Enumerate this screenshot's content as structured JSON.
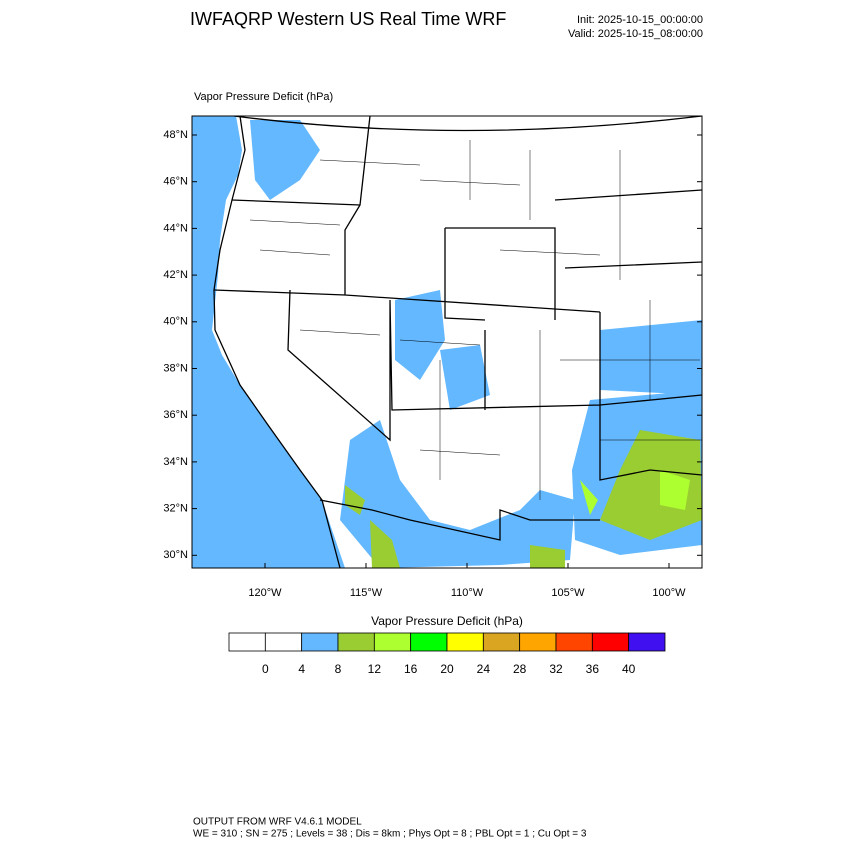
{
  "header": {
    "title": "IWFAQRP Western US Real Time WRF",
    "init": "Init: 2025-10-15_00:00:00",
    "valid": "Valid: 2025-10-15_08:00:00"
  },
  "map": {
    "label": "Vapor Pressure Deficit   (hPa)",
    "lat_labels": [
      "48°N",
      "46°N",
      "44°N",
      "42°N",
      "40°N",
      "38°N",
      "36°N",
      "34°N",
      "32°N",
      "30°N"
    ],
    "lon_labels": [
      "120°W",
      "115°W",
      "110°W",
      "105°W",
      "100°W"
    ]
  },
  "colorbar": {
    "title": "Vapor Pressure Deficit  (hPa)",
    "levels": [
      0,
      4,
      8,
      12,
      16,
      20,
      24,
      28,
      32,
      36,
      40
    ],
    "colors": [
      "#ffffff",
      "#ffffff",
      "#63b8ff",
      "#9acd32",
      "#adff2f",
      "#00ff00",
      "#ffff00",
      "#daa520",
      "#ffa500",
      "#ff4500",
      "#ff0000",
      "#4010f0"
    ]
  },
  "footer": {
    "line1": "OUTPUT FROM WRF V4.6.1 MODEL",
    "line2": "WE = 310 ; SN = 275 ; Levels = 38 ; Dis = 8km ; Phys Opt = 8 ; PBL Opt = 1 ; Cu Opt = 3"
  }
}
